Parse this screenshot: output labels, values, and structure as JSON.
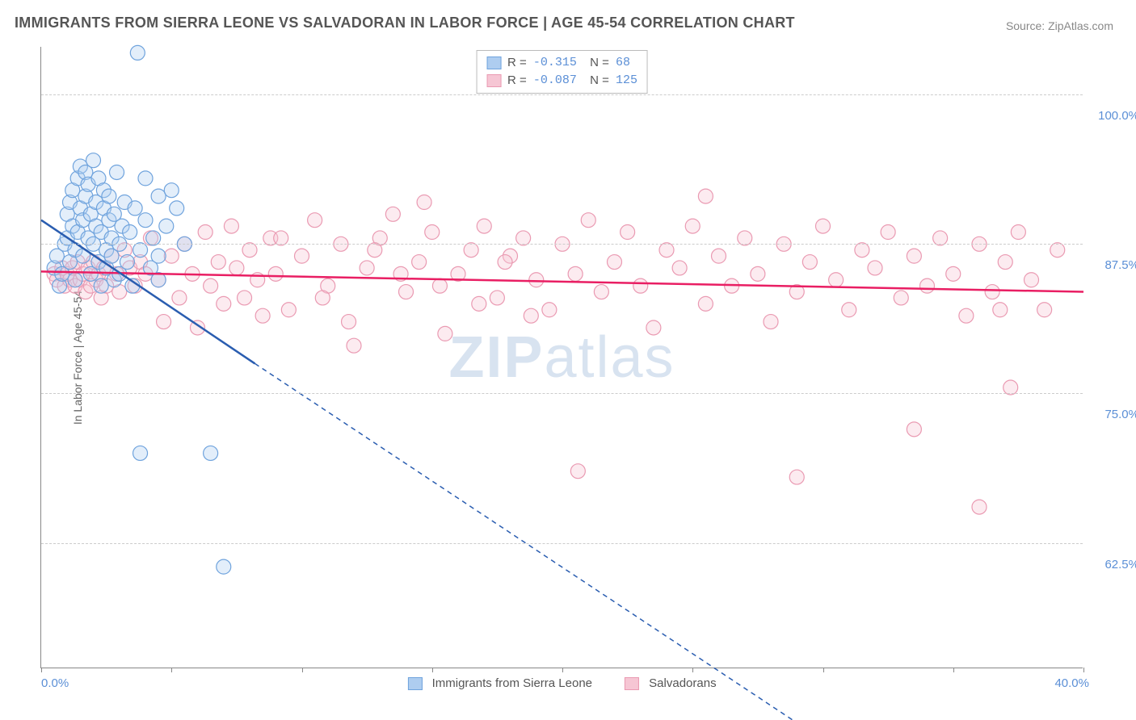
{
  "title": "IMMIGRANTS FROM SIERRA LEONE VS SALVADORAN IN LABOR FORCE | AGE 45-54 CORRELATION CHART",
  "source": "Source: ZipAtlas.com",
  "ylabel": "In Labor Force | Age 45-54",
  "watermark_a": "ZIP",
  "watermark_b": "atlas",
  "chart": {
    "type": "scatter",
    "xlim": [
      0,
      40
    ],
    "ylim": [
      52,
      104
    ],
    "x_ticks": [
      0,
      5,
      10,
      15,
      20,
      25,
      30,
      35,
      40
    ],
    "y_gridlines": [
      62.5,
      75.0,
      87.5,
      100.0
    ],
    "x_axis_labels": {
      "min": "0.0%",
      "max": "40.0%"
    },
    "y_axis_labels": [
      "62.5%",
      "75.0%",
      "87.5%",
      "100.0%"
    ],
    "axis_label_color": "#5b8fd6",
    "grid_color": "#cccccc",
    "background_color": "#ffffff",
    "marker_radius": 9,
    "marker_opacity": 0.35,
    "series": [
      {
        "name": "Immigrants from Sierra Leone",
        "color_fill": "#aecdf0",
        "color_stroke": "#6fa3dd",
        "trend_color": "#2a5db0",
        "R": "-0.315",
        "N": "68",
        "trend": {
          "x1": 0,
          "y1": 89.5,
          "x2": 8.2,
          "y2": 77.5,
          "x_solid_end": 8.2,
          "x_dash_end": 30,
          "y_dash_end": 46
        },
        "points": [
          [
            0.5,
            85.5
          ],
          [
            0.6,
            86.5
          ],
          [
            0.7,
            84.0
          ],
          [
            0.8,
            85.0
          ],
          [
            0.9,
            87.5
          ],
          [
            1.0,
            88.0
          ],
          [
            1.0,
            90.0
          ],
          [
            1.1,
            91.0
          ],
          [
            1.1,
            86.0
          ],
          [
            1.2,
            89.0
          ],
          [
            1.2,
            92.0
          ],
          [
            1.3,
            87.0
          ],
          [
            1.3,
            84.5
          ],
          [
            1.4,
            88.5
          ],
          [
            1.4,
            93.0
          ],
          [
            1.5,
            94.0
          ],
          [
            1.5,
            90.5
          ],
          [
            1.6,
            89.5
          ],
          [
            1.6,
            86.5
          ],
          [
            1.7,
            91.5
          ],
          [
            1.7,
            93.5
          ],
          [
            1.8,
            92.5
          ],
          [
            1.8,
            88.0
          ],
          [
            1.9,
            90.0
          ],
          [
            1.9,
            85.0
          ],
          [
            2.0,
            94.5
          ],
          [
            2.0,
            87.5
          ],
          [
            2.1,
            89.0
          ],
          [
            2.1,
            91.0
          ],
          [
            2.2,
            93.0
          ],
          [
            2.2,
            86.0
          ],
          [
            2.3,
            88.5
          ],
          [
            2.3,
            84.0
          ],
          [
            2.4,
            90.5
          ],
          [
            2.4,
            92.0
          ],
          [
            2.5,
            87.0
          ],
          [
            2.5,
            85.5
          ],
          [
            2.6,
            89.5
          ],
          [
            2.6,
            91.5
          ],
          [
            2.7,
            86.5
          ],
          [
            2.7,
            88.0
          ],
          [
            2.8,
            84.5
          ],
          [
            2.8,
            90.0
          ],
          [
            2.9,
            93.5
          ],
          [
            3.0,
            87.5
          ],
          [
            3.0,
            85.0
          ],
          [
            3.1,
            89.0
          ],
          [
            3.2,
            91.0
          ],
          [
            3.3,
            86.0
          ],
          [
            3.4,
            88.5
          ],
          [
            3.5,
            84.0
          ],
          [
            3.6,
            90.5
          ],
          [
            3.8,
            87.0
          ],
          [
            4.0,
            89.5
          ],
          [
            4.0,
            93.0
          ],
          [
            4.2,
            85.5
          ],
          [
            4.3,
            88.0
          ],
          [
            4.5,
            91.5
          ],
          [
            4.5,
            86.5
          ],
          [
            4.8,
            89.0
          ],
          [
            5.0,
            92.0
          ],
          [
            5.2,
            90.5
          ],
          [
            5.5,
            87.5
          ],
          [
            3.7,
            103.5
          ],
          [
            3.8,
            70.0
          ],
          [
            6.5,
            70.0
          ],
          [
            7.0,
            60.5
          ],
          [
            4.5,
            84.5
          ]
        ]
      },
      {
        "name": "Salvadorans",
        "color_fill": "#f6c6d4",
        "color_stroke": "#ea9ab2",
        "trend_color": "#e91e63",
        "R": "-0.087",
        "N": "125",
        "trend": {
          "x1": 0,
          "y1": 85.2,
          "x2": 40,
          "y2": 83.5
        },
        "points": [
          [
            0.5,
            85.0
          ],
          [
            0.6,
            84.5
          ],
          [
            0.8,
            85.5
          ],
          [
            0.9,
            84.0
          ],
          [
            1.0,
            85.0
          ],
          [
            1.1,
            84.5
          ],
          [
            1.2,
            85.5
          ],
          [
            1.3,
            84.0
          ],
          [
            1.4,
            86.0
          ],
          [
            1.5,
            84.5
          ],
          [
            1.6,
            85.0
          ],
          [
            1.7,
            83.5
          ],
          [
            1.8,
            85.5
          ],
          [
            1.9,
            84.0
          ],
          [
            2.0,
            86.0
          ],
          [
            2.1,
            84.5
          ],
          [
            2.2,
            85.0
          ],
          [
            2.3,
            83.0
          ],
          [
            2.4,
            85.5
          ],
          [
            2.5,
            84.0
          ],
          [
            2.7,
            86.5
          ],
          [
            2.9,
            85.0
          ],
          [
            3.0,
            83.5
          ],
          [
            3.2,
            87.0
          ],
          [
            3.4,
            85.5
          ],
          [
            3.6,
            84.0
          ],
          [
            3.8,
            86.0
          ],
          [
            4.0,
            85.0
          ],
          [
            4.2,
            88.0
          ],
          [
            4.5,
            84.5
          ],
          [
            4.7,
            81.0
          ],
          [
            5.0,
            86.5
          ],
          [
            5.3,
            83.0
          ],
          [
            5.5,
            87.5
          ],
          [
            5.8,
            85.0
          ],
          [
            6.0,
            80.5
          ],
          [
            6.3,
            88.5
          ],
          [
            6.5,
            84.0
          ],
          [
            6.8,
            86.0
          ],
          [
            7.0,
            82.5
          ],
          [
            7.3,
            89.0
          ],
          [
            7.5,
            85.5
          ],
          [
            7.8,
            83.0
          ],
          [
            8.0,
            87.0
          ],
          [
            8.3,
            84.5
          ],
          [
            8.5,
            81.5
          ],
          [
            8.8,
            88.0
          ],
          [
            9.0,
            85.0
          ],
          [
            9.5,
            82.0
          ],
          [
            10.0,
            86.5
          ],
          [
            10.5,
            89.5
          ],
          [
            11.0,
            84.0
          ],
          [
            11.5,
            87.5
          ],
          [
            12.0,
            79.0
          ],
          [
            12.5,
            85.5
          ],
          [
            13.0,
            88.0
          ],
          [
            13.5,
            90.0
          ],
          [
            14.0,
            83.5
          ],
          [
            14.5,
            86.0
          ],
          [
            14.7,
            91.0
          ],
          [
            15.0,
            88.5
          ],
          [
            15.5,
            80.0
          ],
          [
            16.0,
            85.0
          ],
          [
            16.5,
            87.0
          ],
          [
            17.0,
            89.0
          ],
          [
            17.5,
            83.0
          ],
          [
            18.0,
            86.5
          ],
          [
            18.5,
            88.0
          ],
          [
            19.0,
            84.5
          ],
          [
            19.5,
            82.0
          ],
          [
            20.0,
            87.5
          ],
          [
            20.5,
            85.0
          ],
          [
            20.6,
            68.5
          ],
          [
            21.0,
            89.5
          ],
          [
            21.5,
            83.5
          ],
          [
            22.0,
            86.0
          ],
          [
            22.5,
            88.5
          ],
          [
            23.0,
            84.0
          ],
          [
            23.5,
            80.5
          ],
          [
            24.0,
            87.0
          ],
          [
            24.5,
            85.5
          ],
          [
            25.0,
            89.0
          ],
          [
            25.5,
            82.5
          ],
          [
            25.5,
            91.5
          ],
          [
            26.0,
            86.5
          ],
          [
            26.5,
            84.0
          ],
          [
            27.0,
            88.0
          ],
          [
            27.5,
            85.0
          ],
          [
            28.0,
            81.0
          ],
          [
            28.5,
            87.5
          ],
          [
            29.0,
            83.5
          ],
          [
            29.0,
            68.0
          ],
          [
            29.5,
            86.0
          ],
          [
            30.0,
            89.0
          ],
          [
            30.5,
            84.5
          ],
          [
            31.0,
            82.0
          ],
          [
            31.5,
            87.0
          ],
          [
            32.0,
            85.5
          ],
          [
            32.5,
            88.5
          ],
          [
            33.0,
            83.0
          ],
          [
            33.5,
            72.0
          ],
          [
            33.5,
            86.5
          ],
          [
            34.0,
            84.0
          ],
          [
            34.5,
            88.0
          ],
          [
            35.0,
            85.0
          ],
          [
            35.5,
            81.5
          ],
          [
            36.0,
            87.5
          ],
          [
            36.5,
            83.5
          ],
          [
            37.0,
            86.0
          ],
          [
            37.2,
            75.5
          ],
          [
            37.5,
            88.5
          ],
          [
            38.0,
            84.5
          ],
          [
            38.5,
            82.0
          ],
          [
            39.0,
            87.0
          ],
          [
            36.0,
            65.5
          ],
          [
            36.8,
            82.0
          ],
          [
            9.2,
            88.0
          ],
          [
            10.8,
            83.0
          ],
          [
            11.8,
            81.0
          ],
          [
            12.8,
            87.0
          ],
          [
            13.8,
            85.0
          ],
          [
            15.3,
            84.0
          ],
          [
            16.8,
            82.5
          ],
          [
            17.8,
            86.0
          ],
          [
            18.8,
            81.5
          ]
        ]
      }
    ]
  }
}
